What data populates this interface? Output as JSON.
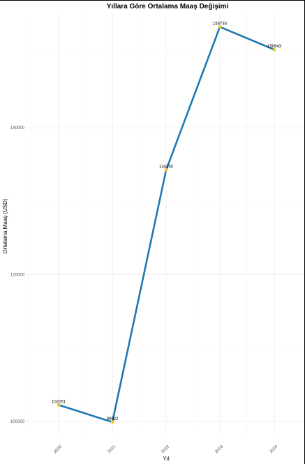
{
  "chart_data": {
    "type": "line",
    "title": "Yıllara Göre Ortalama Maaş Değişimi",
    "xlabel": "Yıl",
    "ylabel": "Ortalama Maaş (USD)",
    "x": [
      "2020",
      "2021",
      "2022",
      "2023",
      "2024"
    ],
    "series": [
      {
        "values": [
          102251,
          99922,
          134250,
          153733,
          150643
        ]
      }
    ],
    "point_labels": [
      "102251",
      "99922",
      "134250",
      "153733",
      "150643"
    ],
    "y_ticks": [
      100000,
      120000,
      140000
    ],
    "y_tick_labels": [
      "100000",
      "120000",
      "140000"
    ],
    "ylim": [
      98300,
      155500
    ],
    "grid": true,
    "legend": "none",
    "colors": {
      "line": "#1f78b4",
      "point": "#f5c518",
      "frame": "#000000"
    }
  }
}
